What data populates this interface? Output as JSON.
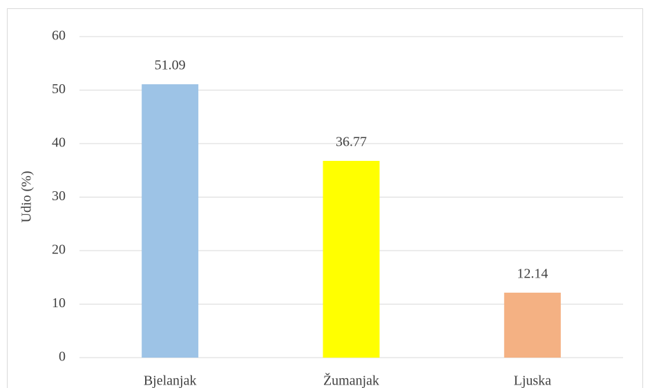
{
  "chart_data": {
    "type": "bar",
    "y_label": "Udio (%)",
    "categories": [
      "Bjelanjak",
      "Žumanjak",
      "Ljuska"
    ],
    "values": [
      51.09,
      36.77,
      12.14
    ],
    "colors": [
      "#9dc3e6",
      "#ffff00",
      "#f4b183"
    ],
    "ylim": [
      0,
      60
    ],
    "yticks": [
      0,
      10,
      20,
      30,
      40,
      50,
      60
    ],
    "grid": true
  }
}
